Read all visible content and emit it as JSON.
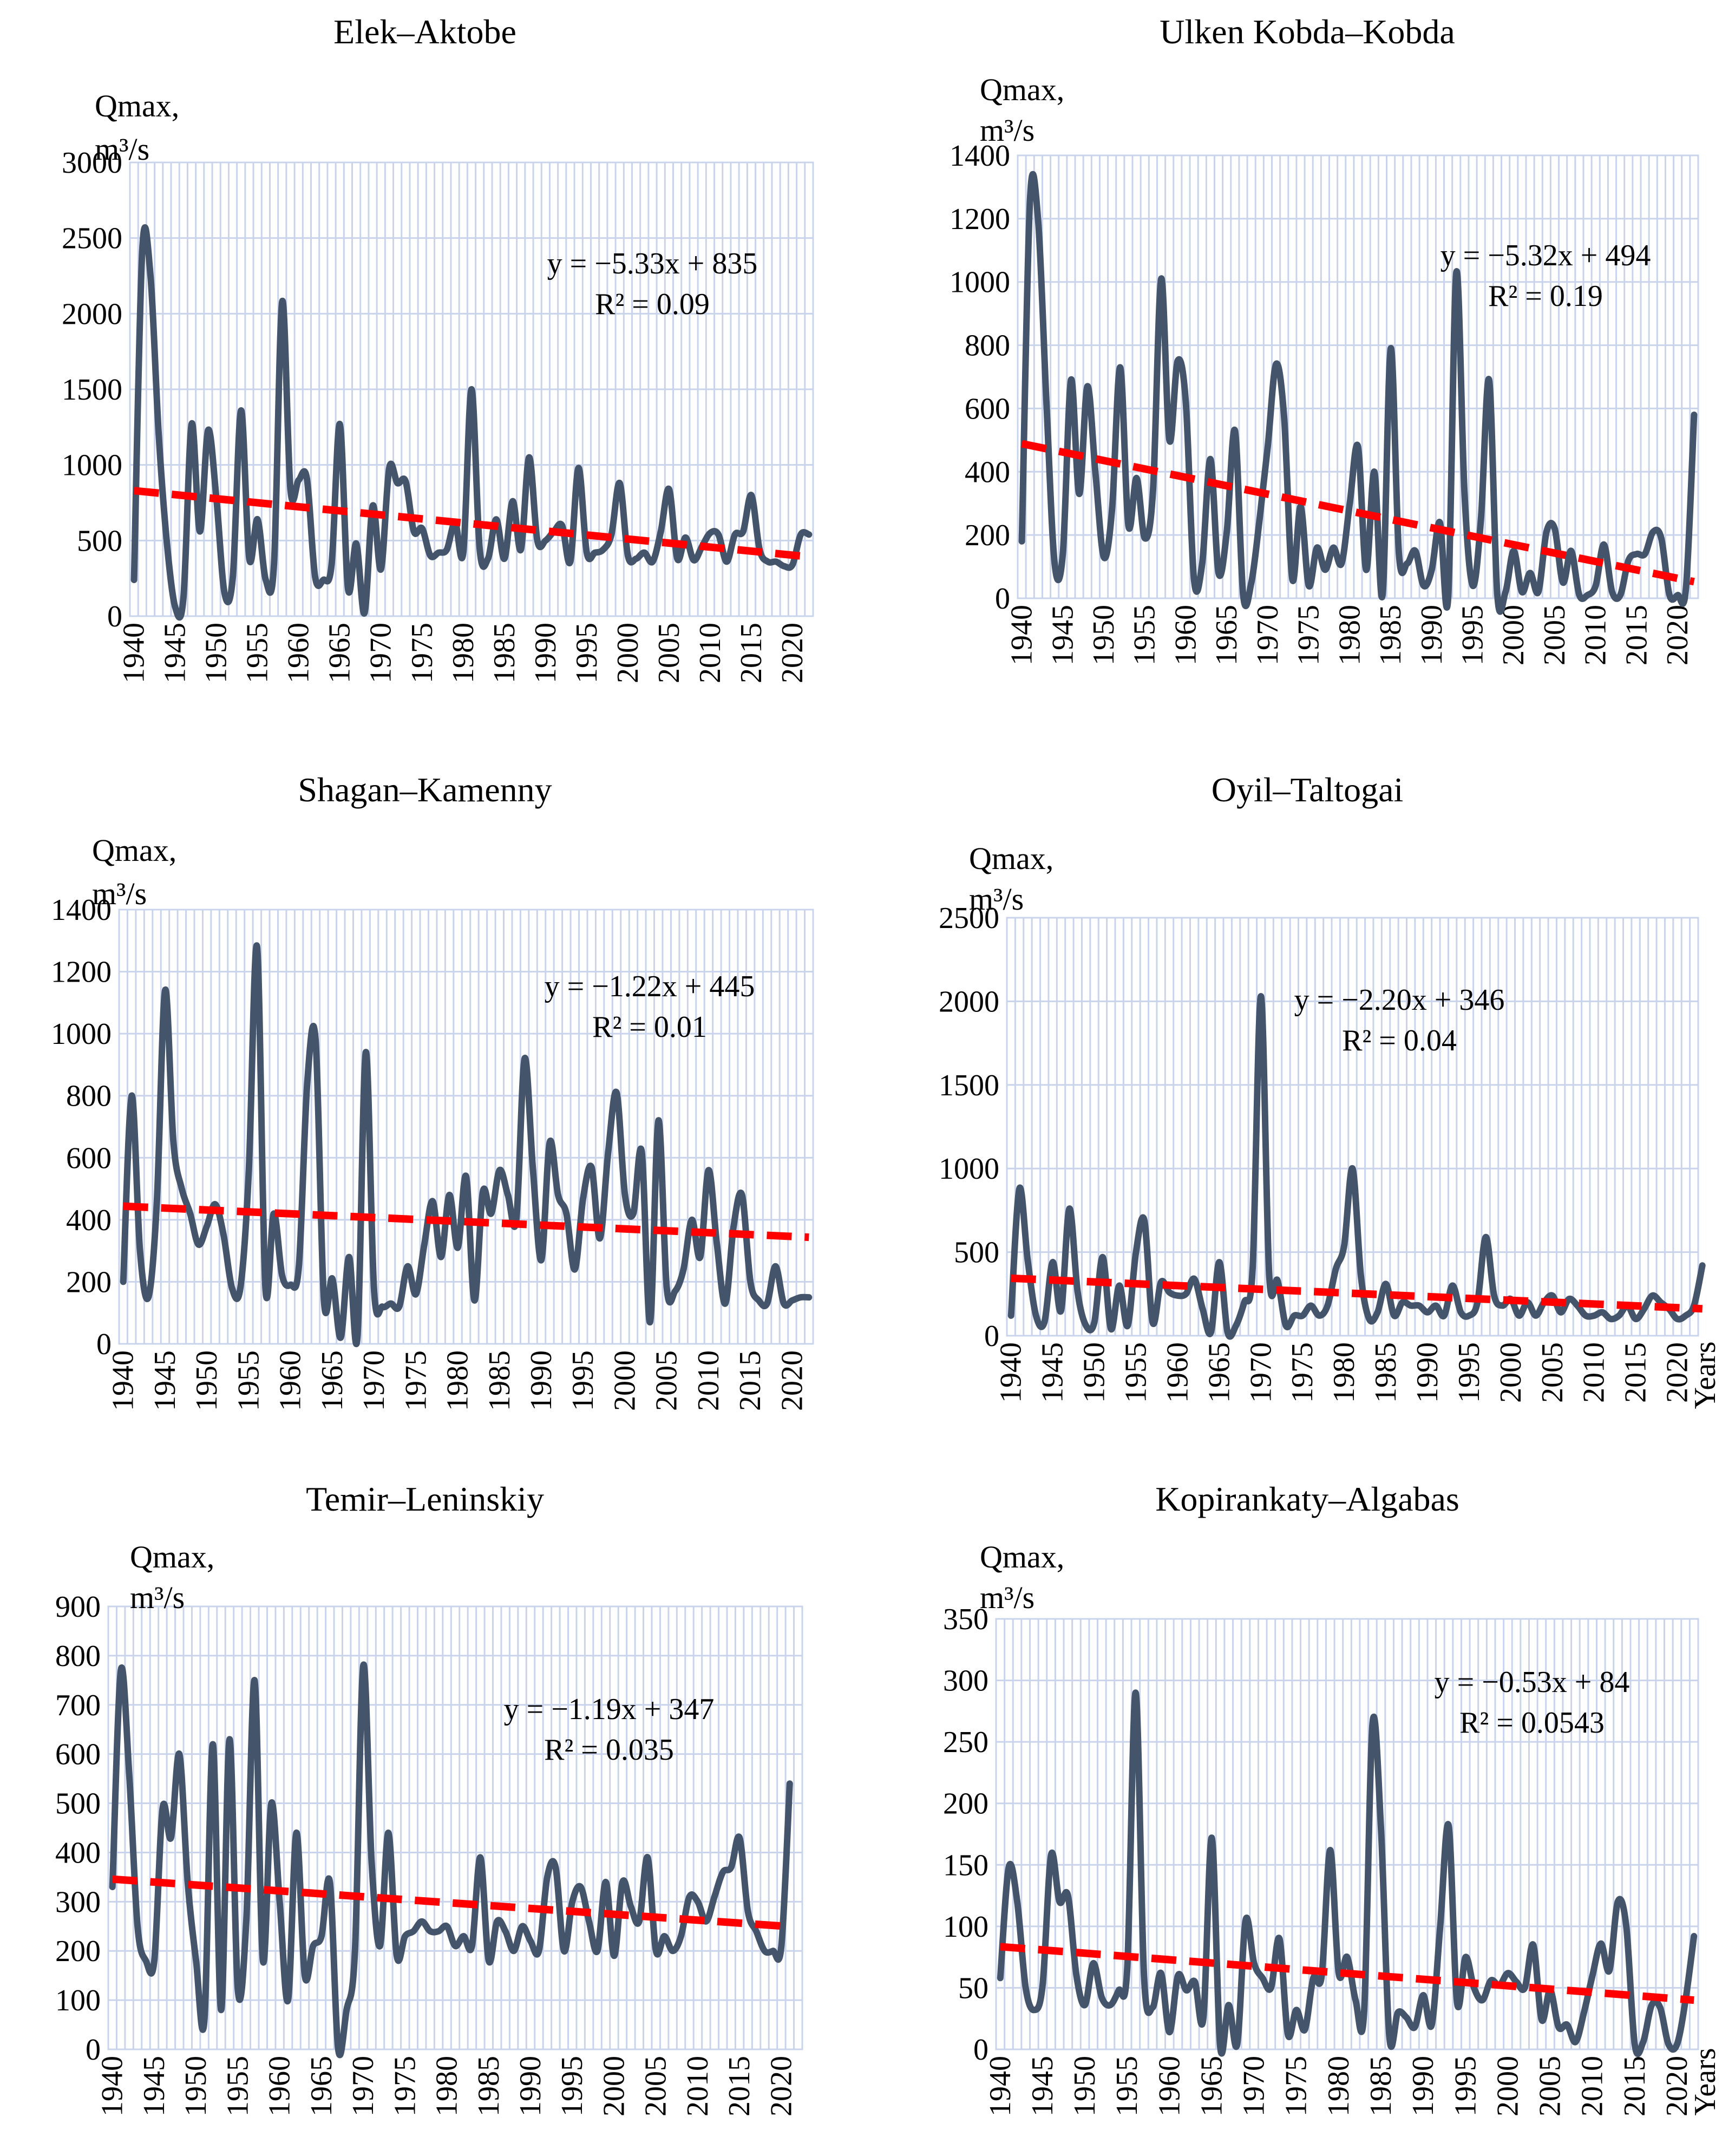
{
  "chart_data": [
    {
      "type": "line",
      "title": "Elek–Aktobe",
      "ylabel": "Qmax,",
      "yunit": "m³/s",
      "xlabel": "",
      "ylim": [
        0,
        3000
      ],
      "yticks": [
        0,
        500,
        1000,
        1500,
        2000,
        2500,
        3000
      ],
      "xlim": [
        1940,
        2022
      ],
      "xticks": [
        1940,
        1945,
        1950,
        1955,
        1960,
        1965,
        1970,
        1975,
        1980,
        1985,
        1990,
        1995,
        2000,
        2005,
        2010,
        2015,
        2020
      ],
      "trend_equation": "y = −5.33x + 835",
      "r_squared": "R² = 0.09",
      "trend": {
        "slope": -5.33,
        "intercept": 835
      },
      "series": [
        {
          "name": "Qmax",
          "x_start": 1940,
          "values": [
            240,
            2420,
            2250,
            1200,
            480,
            60,
            120,
            1270,
            560,
            1230,
            780,
            150,
            260,
            1360,
            380,
            640,
            240,
            340,
            2080,
            840,
            900,
            910,
            260,
            240,
            340,
            1270,
            180,
            480,
            20,
            730,
            310,
            980,
            880,
            890,
            560,
            580,
            400,
            420,
            440,
            620,
            420,
            1500,
            440,
            380,
            640,
            380,
            760,
            440,
            1050,
            500,
            500,
            560,
            600,
            360,
            980,
            420,
            420,
            440,
            540,
            880,
            400,
            380,
            420,
            360,
            560,
            840,
            380,
            520,
            370,
            460,
            550,
            540,
            360,
            540,
            560,
            800,
            440,
            360,
            360,
            330,
            340,
            540,
            540
          ]
        }
      ]
    },
    {
      "type": "line",
      "title": "Ulken Kobda–Kobda",
      "ylabel": "Qmax,",
      "yunit": "m³/s",
      "xlabel": "",
      "ylim": [
        0,
        1400
      ],
      "yticks": [
        0,
        200,
        400,
        600,
        800,
        1000,
        1200,
        1400
      ],
      "xlim": [
        1940,
        2022
      ],
      "xticks": [
        1940,
        1945,
        1950,
        1955,
        1960,
        1965,
        1970,
        1975,
        1980,
        1985,
        1990,
        1995,
        2000,
        2005,
        2010,
        2015,
        2020
      ],
      "trend_equation": "y = −5.32x + 494",
      "r_squared": "R² = 0.19",
      "trend": {
        "slope": -5.32,
        "intercept": 494
      },
      "series": [
        {
          "name": "Qmax",
          "x_start": 1940,
          "values": [
            180,
            1260,
            1190,
            620,
            110,
            140,
            690,
            330,
            670,
            390,
            130,
            280,
            730,
            230,
            380,
            190,
            340,
            1010,
            500,
            750,
            620,
            60,
            110,
            440,
            80,
            210,
            530,
            10,
            50,
            250,
            480,
            740,
            570,
            60,
            290,
            40,
            160,
            90,
            160,
            110,
            300,
            480,
            90,
            400,
            10,
            790,
            140,
            110,
            150,
            40,
            90,
            240,
            0,
            1030,
            330,
            40,
            250,
            690,
            10,
            20,
            150,
            20,
            80,
            20,
            210,
            220,
            50,
            150,
            10,
            10,
            40,
            170,
            20,
            10,
            120,
            140,
            140,
            210,
            190,
            10,
            10,
            30,
            580
          ]
        }
      ]
    },
    {
      "type": "line",
      "title": "Shagan–Kamenny",
      "ylabel": "Qmax,",
      "yunit": "m³/s",
      "xlabel": "",
      "ylim": [
        0,
        1400
      ],
      "yticks": [
        0,
        200,
        400,
        600,
        800,
        1000,
        1200,
        1400
      ],
      "xlim": [
        1940,
        2022
      ],
      "xticks": [
        1940,
        1945,
        1950,
        1955,
        1960,
        1965,
        1970,
        1975,
        1980,
        1985,
        1990,
        1995,
        2000,
        2005,
        2010,
        2015,
        2020
      ],
      "trend_equation": "y = −1.22x + 445",
      "r_squared": "R² = 0.01",
      "trend": {
        "slope": -1.22,
        "intercept": 445
      },
      "series": [
        {
          "name": "Qmax",
          "x_start": 1940,
          "values": [
            200,
            800,
            300,
            150,
            450,
            1140,
            650,
            500,
            420,
            320,
            380,
            450,
            350,
            180,
            180,
            550,
            1280,
            180,
            420,
            220,
            190,
            250,
            840,
            980,
            140,
            210,
            20,
            280,
            20,
            940,
            170,
            120,
            130,
            120,
            250,
            160,
            320,
            460,
            280,
            480,
            310,
            540,
            140,
            490,
            420,
            560,
            480,
            400,
            920,
            560,
            270,
            650,
            480,
            420,
            240,
            470,
            570,
            340,
            620,
            810,
            480,
            420,
            620,
            70,
            720,
            180,
            170,
            240,
            400,
            280,
            560,
            320,
            130,
            380,
            480,
            200,
            140,
            130,
            250,
            130,
            140,
            150,
            150
          ]
        }
      ]
    },
    {
      "type": "line",
      "title": "Oyil–Taltogai",
      "ylabel": "Qmax,",
      "yunit": "m³/s",
      "xlabel": "Years",
      "ylim": [
        0,
        2500
      ],
      "yticks": [
        0,
        500,
        1000,
        1500,
        2000,
        2500
      ],
      "xlim": [
        1940,
        2022
      ],
      "xticks": [
        1940,
        1945,
        1950,
        1955,
        1960,
        1965,
        1970,
        1975,
        1980,
        1985,
        1990,
        1995,
        2000,
        2005,
        2010,
        2015,
        2020
      ],
      "trend_equation": "y = −2.20x + 346",
      "r_squared": "R² = 0.04",
      "trend": {
        "slope": -2.2,
        "intercept": 346
      },
      "series": [
        {
          "name": "Qmax",
          "x_start": 1940,
          "values": [
            120,
            880,
            450,
            120,
            80,
            440,
            150,
            760,
            260,
            60,
            80,
            470,
            40,
            300,
            60,
            500,
            690,
            80,
            320,
            260,
            240,
            250,
            340,
            160,
            20,
            440,
            20,
            60,
            200,
            400,
            2030,
            360,
            330,
            60,
            120,
            120,
            180,
            120,
            180,
            400,
            540,
            1000,
            360,
            100,
            140,
            310,
            120,
            200,
            180,
            180,
            140,
            180,
            120,
            300,
            140,
            120,
            200,
            590,
            240,
            180,
            220,
            120,
            200,
            120,
            200,
            240,
            140,
            220,
            180,
            120,
            120,
            140,
            100,
            120,
            180,
            100,
            160,
            240,
            200,
            160,
            100,
            120,
            180,
            420
          ]
        }
      ]
    },
    {
      "type": "line",
      "title": "Temir–Leninskiy",
      "ylabel": "Qmax,",
      "yunit": "m³/s",
      "xlabel": "",
      "ylim": [
        0,
        900
      ],
      "yticks": [
        0,
        100,
        200,
        300,
        400,
        500,
        600,
        700,
        800,
        900
      ],
      "xlim": [
        1940,
        2022
      ],
      "xticks": [
        1940,
        1945,
        1950,
        1955,
        1960,
        1965,
        1970,
        1975,
        1980,
        1985,
        1990,
        1995,
        2000,
        2005,
        2010,
        2015,
        2020
      ],
      "trend_equation": "y = −1.19x + 347",
      "r_squared": "R² = 0.035",
      "trend": {
        "slope": -1.19,
        "intercept": 347
      },
      "series": [
        {
          "name": "Qmax",
          "x_start": 1940,
          "values": [
            330,
            770,
            560,
            250,
            180,
            180,
            490,
            430,
            600,
            340,
            180,
            60,
            620,
            80,
            630,
            120,
            260,
            750,
            180,
            500,
            300,
            100,
            440,
            150,
            210,
            230,
            340,
            0,
            80,
            200,
            780,
            380,
            210,
            440,
            190,
            230,
            240,
            260,
            240,
            240,
            250,
            210,
            230,
            210,
            390,
            180,
            260,
            240,
            200,
            250,
            220,
            200,
            350,
            370,
            200,
            300,
            330,
            260,
            200,
            340,
            190,
            340,
            290,
            260,
            390,
            200,
            230,
            200,
            230,
            310,
            300,
            260,
            310,
            360,
            370,
            430,
            280,
            240,
            200,
            200,
            210,
            540
          ]
        }
      ]
    },
    {
      "type": "line",
      "title": "Kopirankaty–Algabas",
      "ylabel": "Qmax,",
      "yunit": "m³/s",
      "xlabel": "Years",
      "ylim": [
        0,
        350
      ],
      "yticks": [
        0,
        50,
        100,
        150,
        200,
        250,
        300,
        350
      ],
      "xlim": [
        1940,
        2022
      ],
      "xticks": [
        1940,
        1945,
        1950,
        1955,
        1960,
        1965,
        1970,
        1975,
        1980,
        1985,
        1990,
        1995,
        2000,
        2005,
        2010,
        2015,
        2020
      ],
      "trend_equation": "y = −0.53x + 84",
      "r_squared": "R² = 0.0543",
      "trend": {
        "slope": -0.53,
        "intercept": 84
      },
      "series": [
        {
          "name": "Qmax",
          "x_start": 1940,
          "values": [
            58,
            148,
            120,
            50,
            32,
            52,
            158,
            120,
            125,
            60,
            36,
            70,
            42,
            36,
            48,
            65,
            290,
            58,
            34,
            62,
            14,
            60,
            48,
            55,
            25,
            172,
            2,
            36,
            4,
            105,
            70,
            58,
            50,
            90,
            12,
            32,
            16,
            58,
            60,
            162,
            62,
            75,
            40,
            30,
            265,
            180,
            10,
            30,
            26,
            18,
            44,
            20,
            100,
            182,
            38,
            75,
            50,
            40,
            56,
            52,
            62,
            55,
            50,
            85,
            24,
            48,
            18,
            20,
            6,
            30,
            60,
            86,
            64,
            120,
            100,
            4,
            6,
            36,
            34,
            4,
            4,
            40,
            92
          ]
        }
      ]
    }
  ]
}
